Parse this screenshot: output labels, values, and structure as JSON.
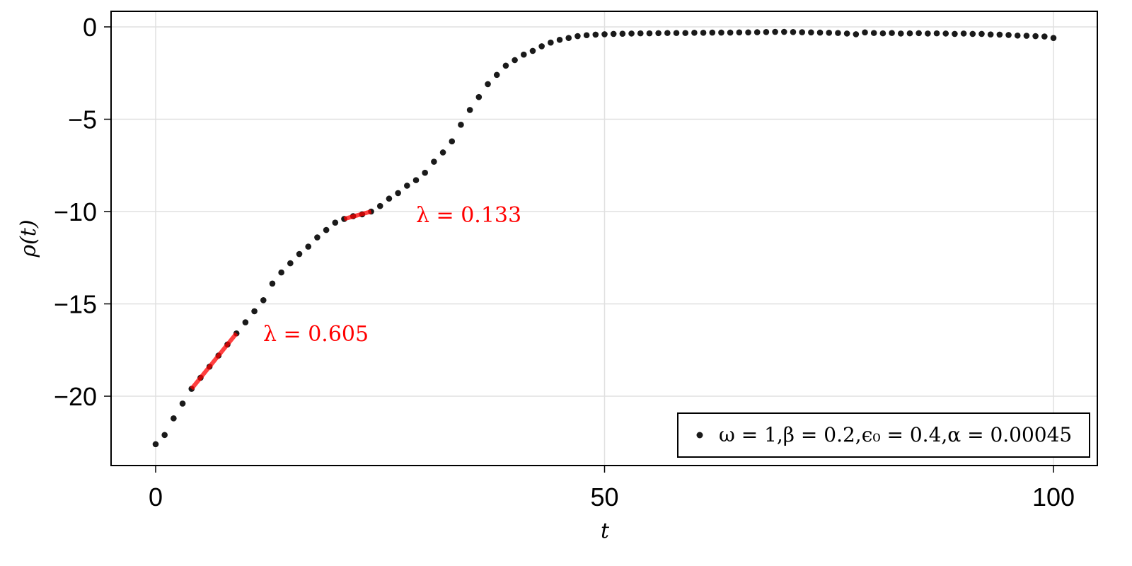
{
  "chart_data": {
    "type": "scatter",
    "title": "",
    "xlabel": "t",
    "ylabel": "ρ(t)",
    "xlim": [
      -5,
      105
    ],
    "ylim": [
      -23.8,
      0.85
    ],
    "grid": true,
    "x_ticks": [
      0,
      50,
      100
    ],
    "x_tick_labels": [
      "0",
      "50",
      "100"
    ],
    "y_ticks": [
      0,
      -5,
      -10,
      -15,
      -20
    ],
    "y_tick_labels": [
      "0",
      "−5",
      "−10",
      "−15",
      "−20"
    ],
    "legend_position": "lower right",
    "series": [
      {
        "name": "ω = 1,β = 0.2,ϵ₀ = 0.4,α = 0.00045",
        "marker": "circle",
        "color": "#1a1a1a",
        "x": [
          0,
          1,
          2,
          3,
          4,
          5,
          6,
          7,
          8,
          9,
          10,
          11,
          12,
          13,
          14,
          15,
          16,
          17,
          18,
          19,
          20,
          21,
          22,
          23,
          24,
          25,
          26,
          27,
          28,
          29,
          30,
          31,
          32,
          33,
          34,
          35,
          36,
          37,
          38,
          39,
          40,
          41,
          42,
          43,
          44,
          45,
          46,
          47,
          48,
          49,
          50,
          51,
          52,
          53,
          54,
          55,
          56,
          57,
          58,
          59,
          60,
          61,
          62,
          63,
          64,
          65,
          66,
          67,
          68,
          69,
          70,
          71,
          72,
          73,
          74,
          75,
          76,
          77,
          78,
          79,
          80,
          81,
          82,
          83,
          84,
          85,
          86,
          87,
          88,
          89,
          90,
          91,
          92,
          93,
          94,
          95,
          96,
          97,
          98,
          99,
          100
        ],
        "values": [
          -22.6,
          -22.1,
          -21.2,
          -20.4,
          -19.6,
          -19.0,
          -18.4,
          -17.8,
          -17.2,
          -16.6,
          -16.0,
          -15.4,
          -14.8,
          -13.9,
          -13.3,
          -12.8,
          -12.3,
          -11.9,
          -11.4,
          -11.0,
          -10.6,
          -10.4,
          -10.25,
          -10.15,
          -10.0,
          -9.7,
          -9.3,
          -9.0,
          -8.6,
          -8.3,
          -7.9,
          -7.3,
          -6.8,
          -6.2,
          -5.3,
          -4.5,
          -3.8,
          -3.1,
          -2.6,
          -2.1,
          -1.8,
          -1.5,
          -1.3,
          -1.05,
          -0.85,
          -0.7,
          -0.6,
          -0.5,
          -0.45,
          -0.42,
          -0.4,
          -0.38,
          -0.37,
          -0.36,
          -0.35,
          -0.35,
          -0.34,
          -0.33,
          -0.33,
          -0.33,
          -0.32,
          -0.32,
          -0.31,
          -0.31,
          -0.31,
          -0.3,
          -0.3,
          -0.29,
          -0.28,
          -0.27,
          -0.27,
          -0.28,
          -0.29,
          -0.3,
          -0.31,
          -0.32,
          -0.33,
          -0.36,
          -0.4,
          -0.3,
          -0.33,
          -0.35,
          -0.33,
          -0.36,
          -0.35,
          -0.34,
          -0.36,
          -0.35,
          -0.36,
          -0.38,
          -0.36,
          -0.38,
          -0.38,
          -0.41,
          -0.42,
          -0.44,
          -0.47,
          -0.48,
          -0.5,
          -0.52,
          -0.6
        ]
      }
    ],
    "fit_lines": [
      {
        "label": "λ = 0.605",
        "slope": 0.605,
        "x": [
          4,
          9
        ],
        "y": [
          -19.6,
          -16.6
        ],
        "color": "#ff0000",
        "annotation_pos": [
          12,
          -16.8
        ]
      },
      {
        "label": "λ = 0.133",
        "slope": 0.133,
        "x": [
          21,
          24
        ],
        "y": [
          -10.4,
          -10.0
        ],
        "color": "#ff0000",
        "annotation_pos": [
          29,
          -10.2
        ]
      }
    ]
  },
  "annotations": {
    "fit1": "λ = 0.605",
    "fit2": "λ = 0.133"
  },
  "legend": {
    "entry": "ω = 1,β = 0.2,ϵ₀ = 0.4,α = 0.00045"
  },
  "axes": {
    "xlabel": "t",
    "ylabel": "ρ(t)"
  },
  "colors": {
    "points": "#1a1a1a",
    "fit": "#ff0000",
    "grid": "#e0e0e0",
    "frame": "#000000"
  }
}
